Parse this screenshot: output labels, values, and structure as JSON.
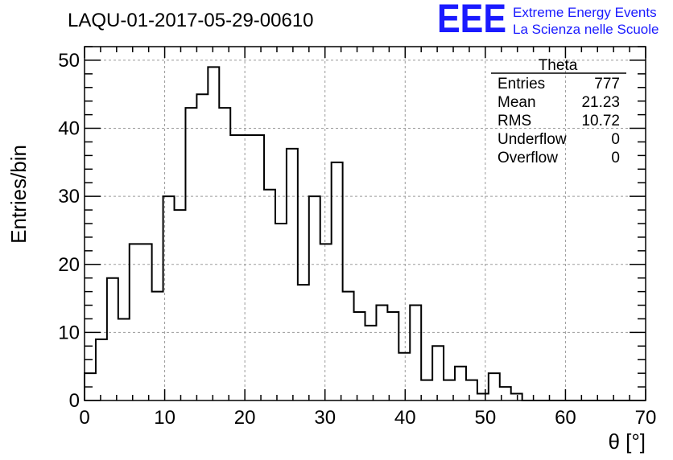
{
  "header": {
    "run_title": "LAQU-01-2017-05-29-00610",
    "logo_mark": "EEE",
    "logo_line1": "Extreme Energy Events",
    "logo_line2": "La Scienza nelle Scuole",
    "logo_color": "#1a1aff"
  },
  "stats_box": {
    "title": "Theta",
    "rows": [
      {
        "label": "Entries",
        "value": "777"
      },
      {
        "label": "Mean",
        "value": "21.23"
      },
      {
        "label": "RMS",
        "value": "10.72"
      },
      {
        "label": "Underflow",
        "value": "0"
      },
      {
        "label": "Overflow",
        "value": "0"
      }
    ]
  },
  "chart_data": {
    "type": "bar",
    "style": "histogram-step",
    "title": "LAQU-01-2017-05-29-00610",
    "xlabel": "θ [°]",
    "ylabel": "Entries/bin",
    "xlim": [
      0,
      70
    ],
    "ylim": [
      0,
      52
    ],
    "grid": true,
    "bin_width": 1.4,
    "x_ticks": [
      0,
      10,
      20,
      30,
      40,
      50,
      60,
      70
    ],
    "y_ticks": [
      0,
      10,
      20,
      30,
      40,
      50
    ],
    "values": [
      4,
      9,
      18,
      12,
      23,
      23,
      16,
      30,
      28,
      43,
      45,
      49,
      43,
      39,
      39,
      39,
      31,
      26,
      37,
      17,
      30,
      23,
      35,
      16,
      13,
      11,
      14,
      13,
      7,
      14,
      3,
      8,
      3,
      5,
      3,
      1,
      4,
      2,
      1,
      0,
      0,
      0,
      0,
      0,
      0,
      0,
      0,
      0,
      0,
      0
    ]
  }
}
